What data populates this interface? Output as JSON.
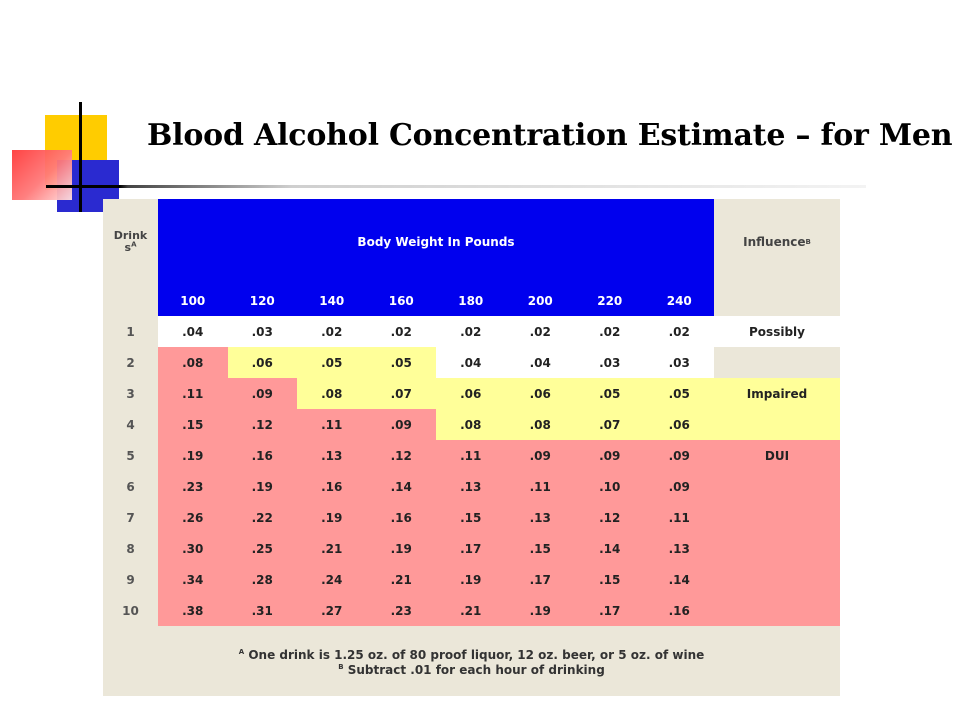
{
  "title": "Blood Alcohol Concentration Estimate – for Men",
  "table": {
    "drinks_header": "Drink",
    "drinks_header_2": "s",
    "drinks_header_sup": "A",
    "weight_header": "Body Weight In Pounds",
    "influence_header": "Influence",
    "influence_header_sup": "B",
    "weights": [
      "100",
      "120",
      "140",
      "160",
      "180",
      "200",
      "220",
      "240"
    ],
    "rows": [
      {
        "drinks": "1",
        "values": [
          ".04",
          ".03",
          ".02",
          ".02",
          ".02",
          ".02",
          ".02",
          ".02"
        ],
        "influence": "Possibly"
      },
      {
        "drinks": "2",
        "values": [
          ".08",
          ".06",
          ".05",
          ".05",
          ".04",
          ".04",
          ".03",
          ".03"
        ],
        "influence": ""
      },
      {
        "drinks": "3",
        "values": [
          ".11",
          ".09",
          ".08",
          ".07",
          ".06",
          ".06",
          ".05",
          ".05"
        ],
        "influence": "Impaired"
      },
      {
        "drinks": "4",
        "values": [
          ".15",
          ".12",
          ".11",
          ".09",
          ".08",
          ".08",
          ".07",
          ".06"
        ],
        "influence": ""
      },
      {
        "drinks": "5",
        "values": [
          ".19",
          ".16",
          ".13",
          ".12",
          ".11",
          ".09",
          ".09",
          ".09"
        ],
        "influence": "DUI"
      },
      {
        "drinks": "6",
        "values": [
          ".23",
          ".19",
          ".16",
          ".14",
          ".13",
          ".11",
          ".10",
          ".09"
        ],
        "influence": ""
      },
      {
        "drinks": "7",
        "values": [
          ".26",
          ".22",
          ".19",
          ".16",
          ".15",
          ".13",
          ".12",
          ".11"
        ],
        "influence": ""
      },
      {
        "drinks": "8",
        "values": [
          ".30",
          ".25",
          ".21",
          ".19",
          ".17",
          ".15",
          ".14",
          ".13"
        ],
        "influence": ""
      },
      {
        "drinks": "9",
        "values": [
          ".34",
          ".28",
          ".24",
          ".21",
          ".19",
          ".17",
          ".15",
          ".14"
        ],
        "influence": ""
      },
      {
        "drinks": "10",
        "values": [
          ".38",
          ".31",
          ".27",
          ".23",
          ".21",
          ".19",
          ".17",
          ".16"
        ],
        "influence": ""
      }
    ],
    "colors": {
      "possibly": "#ffffff",
      "impaired": "#ffff99",
      "dui": "#ff9999",
      "header": "#0000ee",
      "panel": "#ebe7d9"
    }
  },
  "footnotes": {
    "a_marker": "A",
    "a_text": " One drink is 1.25 oz. of 80 proof liquor, 12 oz. beer, or 5 oz. of wine",
    "b_marker": "B",
    "b_text": " Subtract .01 for each hour of drinking"
  }
}
